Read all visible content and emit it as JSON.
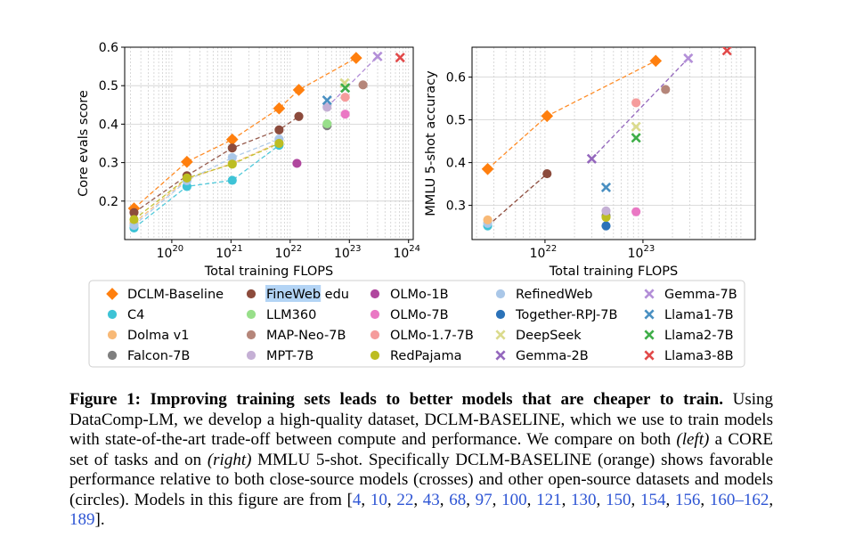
{
  "chart_data": [
    {
      "type": "scatter",
      "panel": "left",
      "xscale": "log",
      "xlabel": "Total training FLOPS",
      "ylabel": "Core evals score",
      "xlim": [
        1.6e+19,
        1.2e+24
      ],
      "ylim": [
        0.1,
        0.6
      ],
      "xticks": [
        {
          "v": 1e+20,
          "base": "10",
          "exp": "20"
        },
        {
          "v": 1e+21,
          "base": "10",
          "exp": "21"
        },
        {
          "v": 1e+22,
          "base": "10",
          "exp": "22"
        },
        {
          "v": 1e+23,
          "base": "10",
          "exp": "23"
        },
        {
          "v": 1e+24,
          "base": "10",
          "exp": "24"
        }
      ],
      "yticks": [
        {
          "v": 0.2,
          "label": "0.2"
        },
        {
          "v": 0.3,
          "label": "0.3"
        },
        {
          "v": 0.4,
          "label": "0.4"
        },
        {
          "v": 0.5,
          "label": "0.5"
        },
        {
          "v": 0.6,
          "label": "0.6"
        }
      ],
      "grid": true,
      "series": [
        {
          "name": "DCLM-Baseline",
          "marker": "diamond",
          "color": "#ff7f0e",
          "line": true,
          "points": [
            [
              2.3e+19,
              0.181
            ],
            [
              1.8e+20,
              0.302
            ],
            [
              1.05e+21,
              0.36
            ],
            [
              6.5e+21,
              0.441
            ],
            [
              1.4e+22,
              0.489
            ],
            [
              1.3e+23,
              0.572
            ]
          ]
        },
        {
          "name": "C4",
          "marker": "circle",
          "color": "#3ec3d6",
          "line": true,
          "points": [
            [
              2.3e+19,
              0.13
            ],
            [
              1.8e+20,
              0.238
            ],
            [
              1.05e+21,
              0.254
            ],
            [
              6.5e+21,
              0.345
            ]
          ]
        },
        {
          "name": "Dolma v1",
          "marker": "circle",
          "color": "#f8b977",
          "line": true,
          "points": [
            [
              2.3e+19,
              0.143
            ],
            [
              1.8e+20,
              0.257
            ],
            [
              1.05e+21,
              0.298
            ],
            [
              6.5e+21,
              0.352
            ]
          ]
        },
        {
          "name": "FineWeb edu",
          "marker": "circle",
          "color": "#8c4b3c",
          "line": true,
          "points": [
            [
              2.3e+19,
              0.17
            ],
            [
              1.8e+20,
              0.266
            ],
            [
              1.05e+21,
              0.338
            ],
            [
              6.5e+21,
              0.385
            ],
            [
              1.4e+22,
              0.42
            ]
          ]
        },
        {
          "name": "RefinedWeb",
          "marker": "circle",
          "color": "#aac7e8",
          "line": true,
          "points": [
            [
              2.3e+19,
              0.137
            ],
            [
              1.8e+20,
              0.253
            ],
            [
              1.05e+21,
              0.313
            ],
            [
              6.5e+21,
              0.361
            ]
          ]
        },
        {
          "name": "RedPajama",
          "marker": "circle",
          "color": "#bcbd22",
          "line": true,
          "points": [
            [
              2.3e+19,
              0.152
            ],
            [
              1.8e+20,
              0.26
            ],
            [
              1.05e+21,
              0.296
            ],
            [
              6.5e+21,
              0.35
            ]
          ]
        },
        {
          "name": "Falcon-7B",
          "marker": "circle",
          "color": "#7f7f7f",
          "line": false,
          "points": [
            [
              4.2e+22,
              0.396
            ]
          ]
        },
        {
          "name": "LLM360",
          "marker": "circle",
          "color": "#98df8a",
          "line": false,
          "points": [
            [
              4.2e+22,
              0.401
            ]
          ]
        },
        {
          "name": "MPT-7B",
          "marker": "circle",
          "color": "#c5b0d5",
          "line": false,
          "points": [
            [
              4.2e+22,
              0.444
            ]
          ]
        },
        {
          "name": "OLMo-1B",
          "marker": "circle",
          "color": "#b0479e",
          "line": false,
          "points": [
            [
              1.3e+22,
              0.298
            ]
          ]
        },
        {
          "name": "OLMo-7B",
          "marker": "circle",
          "color": "#ea78c4",
          "line": false,
          "points": [
            [
              8.5e+22,
              0.426
            ]
          ]
        },
        {
          "name": "OLMo-1.7-7B",
          "marker": "circle",
          "color": "#f59c9c",
          "line": false,
          "points": [
            [
              8.5e+22,
              0.47
            ]
          ]
        },
        {
          "name": "MAP-Neo-7B",
          "marker": "circle",
          "color": "#b5867a",
          "line": false,
          "points": [
            [
              1.7e+23,
              0.502
            ]
          ]
        },
        {
          "name": "Together-RPJ-7B",
          "marker": "circle",
          "color": "#2b72b8",
          "line": false,
          "points": []
        },
        {
          "name": "DeepSeek",
          "marker": "x",
          "color": "#dbdb8d",
          "line": false,
          "points": [
            [
              8.3e+22,
              0.507
            ]
          ]
        },
        {
          "name": "Llama1-7B",
          "marker": "x",
          "color": "#4a90c2",
          "line": false,
          "points": [
            [
              4.2e+22,
              0.462
            ]
          ]
        },
        {
          "name": "Llama2-7B",
          "marker": "x",
          "color": "#3fae49",
          "line": false,
          "points": [
            [
              8.5e+22,
              0.494
            ]
          ]
        },
        {
          "name": "Gemma-2B",
          "marker": "x",
          "color": "#9467bd",
          "line": false,
          "points": []
        },
        {
          "name": "Gemma-7B",
          "marker": "x",
          "color": "#b38fd8",
          "line": false,
          "points": [
            [
              3e+23,
              0.576
            ]
          ]
        },
        {
          "name": "Llama3-8B",
          "marker": "x",
          "color": "#e24a4a",
          "line": false,
          "points": [
            [
              7.2e+23,
              0.573
            ]
          ]
        }
      ],
      "dashed_links": [
        {
          "color": "#b38fd8",
          "points": [
            [
              4.2e+22,
              0.444
            ],
            [
              3e+23,
              0.576
            ]
          ]
        },
        {
          "color": "#9a9a9a",
          "points": [
            [
              4.2e+22,
              0.396
            ],
            [
              4.2e+22,
              0.401
            ]
          ]
        }
      ]
    },
    {
      "type": "scatter",
      "panel": "right",
      "xscale": "log",
      "xlabel": "Total training FLOPS",
      "ylabel": "MMLU 5-shot accuracy",
      "xlim": [
        1.8e+21,
        1.4e+24
      ],
      "ylim": [
        0.22,
        0.67
      ],
      "xticks": [
        {
          "v": 1e+22,
          "base": "10",
          "exp": "22"
        },
        {
          "v": 1e+23,
          "base": "10",
          "exp": "23"
        }
      ],
      "yticks": [
        {
          "v": 0.3,
          "label": "0.3"
        },
        {
          "v": 0.4,
          "label": "0.4"
        },
        {
          "v": 0.5,
          "label": "0.5"
        },
        {
          "v": 0.6,
          "label": "0.6"
        }
      ],
      "grid": true,
      "series": [
        {
          "name": "DCLM-Baseline",
          "marker": "diamond",
          "color": "#ff7f0e",
          "line": true,
          "points": [
            [
              2.6e+21,
              0.385
            ],
            [
              1.05e+22,
              0.509
            ],
            [
              1.35e+23,
              0.638
            ]
          ]
        },
        {
          "name": "C4",
          "marker": "circle",
          "color": "#3ec3d6",
          "line": false,
          "points": [
            [
              2.6e+21,
              0.252
            ]
          ]
        },
        {
          "name": "RefinedWeb",
          "marker": "circle",
          "color": "#aac7e8",
          "line": false,
          "points": [
            [
              2.6e+21,
              0.258
            ]
          ]
        },
        {
          "name": "Dolma v1",
          "marker": "circle",
          "color": "#f8b977",
          "line": false,
          "points": [
            [
              2.6e+21,
              0.266
            ]
          ]
        },
        {
          "name": "FineWeb edu",
          "marker": "circle",
          "color": "#8c4b3c",
          "line": false,
          "points": [
            [
              1.05e+22,
              0.374
            ]
          ]
        },
        {
          "name": "Together-RPJ-7B",
          "marker": "circle",
          "color": "#2b72b8",
          "line": false,
          "points": [
            [
              4.2e+22,
              0.252
            ]
          ]
        },
        {
          "name": "Falcon-7B",
          "marker": "circle",
          "color": "#7f7f7f",
          "line": false,
          "points": [
            [
              4.2e+22,
              0.276
            ]
          ]
        },
        {
          "name": "RedPajama",
          "marker": "circle",
          "color": "#bcbd22",
          "line": false,
          "points": [
            [
              4.2e+22,
              0.272
            ]
          ]
        },
        {
          "name": "MPT-7B",
          "marker": "circle",
          "color": "#c5b0d5",
          "line": false,
          "points": [
            [
              4.2e+22,
              0.287
            ]
          ]
        },
        {
          "name": "OLMo-7B",
          "marker": "circle",
          "color": "#ea78c4",
          "line": false,
          "points": [
            [
              8.5e+22,
              0.285
            ]
          ]
        },
        {
          "name": "OLMo-1.7-7B",
          "marker": "circle",
          "color": "#f59c9c",
          "line": false,
          "points": [
            [
              8.5e+22,
              0.54
            ]
          ]
        },
        {
          "name": "MAP-Neo-7B",
          "marker": "circle",
          "color": "#b5867a",
          "line": false,
          "points": [
            [
              1.7e+23,
              0.571
            ]
          ]
        },
        {
          "name": "Llama1-7B",
          "marker": "x",
          "color": "#4a90c2",
          "line": false,
          "points": [
            [
              4.2e+22,
              0.342
            ]
          ]
        },
        {
          "name": "Llama2-7B",
          "marker": "x",
          "color": "#3fae49",
          "line": false,
          "points": [
            [
              8.5e+22,
              0.458
            ]
          ]
        },
        {
          "name": "DeepSeek",
          "marker": "x",
          "color": "#dbdb8d",
          "line": false,
          "points": [
            [
              8.5e+22,
              0.484
            ]
          ]
        },
        {
          "name": "Gemma-2B",
          "marker": "x",
          "color": "#9467bd",
          "line": false,
          "points": [
            [
              3e+22,
              0.409
            ]
          ]
        },
        {
          "name": "Gemma-7B",
          "marker": "x",
          "color": "#b38fd8",
          "line": false,
          "points": [
            [
              2.9e+23,
              0.644
            ]
          ]
        },
        {
          "name": "Llama3-8B",
          "marker": "x",
          "color": "#e24a4a",
          "line": false,
          "points": [
            [
              7.2e+23,
              0.662
            ]
          ]
        }
      ],
      "dashed_links": [
        {
          "color": "#9467bd",
          "points": [
            [
              3e+22,
              0.409
            ],
            [
              2.9e+23,
              0.644
            ]
          ]
        },
        {
          "color": "#8c4b3c",
          "points": [
            [
              2.6e+21,
              0.252
            ],
            [
              1.05e+22,
              0.374
            ]
          ]
        }
      ]
    }
  ],
  "legend": {
    "placement": "below-plots",
    "columns": [
      [
        {
          "name": "DCLM-Baseline",
          "marker": "diamond",
          "color": "#ff7f0e"
        },
        {
          "name": "C4",
          "marker": "circle",
          "color": "#3ec3d6"
        },
        {
          "name": "Dolma v1",
          "marker": "circle",
          "color": "#f8b977"
        },
        {
          "name": "Falcon-7B",
          "marker": "circle",
          "color": "#7f7f7f"
        }
      ],
      [
        {
          "name": "FineWeb edu",
          "marker": "circle",
          "color": "#8c4b3c",
          "highlight_text": "FineWeb",
          "rest_text": " edu"
        },
        {
          "name": "LLM360",
          "marker": "circle",
          "color": "#98df8a"
        },
        {
          "name": "MAP-Neo-7B",
          "marker": "circle",
          "color": "#b5867a"
        },
        {
          "name": "MPT-7B",
          "marker": "circle",
          "color": "#c5b0d5"
        }
      ],
      [
        {
          "name": "OLMo-1B",
          "marker": "circle",
          "color": "#b0479e"
        },
        {
          "name": "OLMo-7B",
          "marker": "circle",
          "color": "#ea78c4"
        },
        {
          "name": "OLMo-1.7-7B",
          "marker": "circle",
          "color": "#f59c9c"
        },
        {
          "name": "RedPajama",
          "marker": "circle",
          "color": "#bcbd22"
        }
      ],
      [
        {
          "name": "RefinedWeb",
          "marker": "circle",
          "color": "#aac7e8"
        },
        {
          "name": "Together-RPJ-7B",
          "marker": "circle",
          "color": "#2b72b8"
        },
        {
          "name": "DeepSeek",
          "marker": "x",
          "color": "#dbdb8d"
        },
        {
          "name": "Gemma-2B",
          "marker": "x",
          "color": "#9467bd"
        }
      ],
      [
        {
          "name": "Gemma-7B",
          "marker": "x",
          "color": "#b38fd8"
        },
        {
          "name": "Llama1-7B",
          "marker": "x",
          "color": "#4a90c2"
        },
        {
          "name": "Llama2-7B",
          "marker": "x",
          "color": "#3fae49"
        },
        {
          "name": "Llama3-8B",
          "marker": "x",
          "color": "#e24a4a"
        }
      ]
    ]
  },
  "caption": {
    "label": "Figure 1:",
    "title": "Improving training sets leads to better models that are cheaper to train.",
    "t1": "Using DataComp-LM, we develop a high-quality dataset, ",
    "dclm1": "DCLM-BASELINE",
    "t2": ", which we use to train models with state-of-the-art trade-off between compute and performance. We compare on both ",
    "left": "(left)",
    "t3": " a ",
    "core": "CORE",
    "t4": " set of tasks and on ",
    "right": "(right)",
    "t5": " MMLU 5-shot. Specifically ",
    "dclm2": "DCLM-BASELINE",
    "t6": " (orange) shows favorable performance relative to both close-source models (crosses) and other open-source datasets and models (circles). Models in this figure are from [",
    "citations": [
      "4",
      "10",
      "22",
      "43",
      "68",
      "97",
      "100",
      "121",
      "130",
      "150",
      "154",
      "156",
      "160–162",
      "189"
    ],
    "t7": "]."
  }
}
